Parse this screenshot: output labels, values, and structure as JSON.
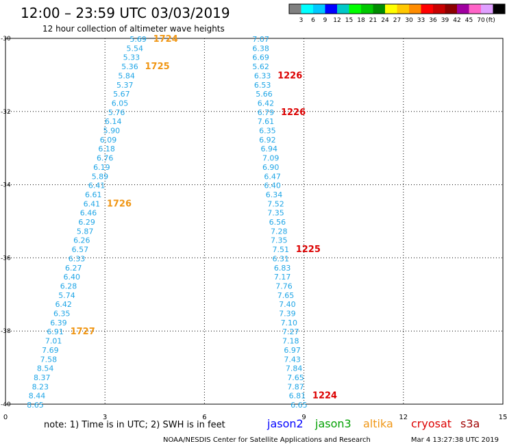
{
  "header": {
    "title": "12:00 – 23:59 UTC 03/03/2019",
    "subtitle": "12 hour collection of altimeter wave heights",
    "unit": "(ft)"
  },
  "legend": {
    "labels": [
      "3",
      "6",
      "9",
      "12",
      "15",
      "18",
      "21",
      "24",
      "27",
      "30",
      "33",
      "36",
      "39",
      "42",
      "45",
      "70"
    ],
    "colors": [
      "#808080",
      "#00ffff",
      "#00c8ff",
      "#0000ff",
      "#00c8c8",
      "#00ff00",
      "#00c800",
      "#008c00",
      "#ffff00",
      "#ffc800",
      "#ff8c00",
      "#ff0000",
      "#c80000",
      "#8c0000",
      "#a000a0",
      "#ff64c8",
      "#e0a0ff",
      "#000000"
    ]
  },
  "axes": {
    "x": {
      "range": [
        0,
        15
      ],
      "ticks": [
        "0",
        "3",
        "6",
        "9",
        "12",
        "15"
      ]
    },
    "y": {
      "range": [
        -40,
        -30
      ],
      "ticks": [
        "-30",
        "-32",
        "-34",
        "-36",
        "-38",
        "-40"
      ]
    },
    "grid": true
  },
  "colors": {
    "swh": "#1ea5e6",
    "altika": "#f09614",
    "cryosat": "#dc0000",
    "jason2": "#0000ff",
    "jason3": "#00a000",
    "s3a": "#a00000"
  },
  "chart_data": {
    "type": "scatter",
    "xlim": [
      0,
      15
    ],
    "ylim": [
      -40,
      -30
    ],
    "tracks": [
      {
        "points": [
          {
            "x": 4.0,
            "y": -30.0,
            "label": "5.69"
          },
          {
            "x": 3.9,
            "y": -30.25,
            "label": "5.54"
          },
          {
            "x": 3.8,
            "y": -30.5,
            "label": "5.33"
          },
          {
            "x": 3.75,
            "y": -30.75,
            "label": "5.36"
          },
          {
            "x": 3.65,
            "y": -31.0,
            "label": "5.84"
          },
          {
            "x": 3.6,
            "y": -31.25,
            "label": "5.37"
          },
          {
            "x": 3.5,
            "y": -31.5,
            "label": "5.67"
          },
          {
            "x": 3.45,
            "y": -31.75,
            "label": "6.05"
          },
          {
            "x": 3.35,
            "y": -32.0,
            "label": "5.76"
          },
          {
            "x": 3.25,
            "y": -32.25,
            "label": "6.14"
          },
          {
            "x": 3.2,
            "y": -32.5,
            "label": "5.90"
          },
          {
            "x": 3.1,
            "y": -32.75,
            "label": "6.09"
          },
          {
            "x": 3.05,
            "y": -33.0,
            "label": "6.18"
          },
          {
            "x": 3.0,
            "y": -33.25,
            "label": "6.76"
          },
          {
            "x": 2.9,
            "y": -33.5,
            "label": "6.19"
          },
          {
            "x": 2.85,
            "y": -33.75,
            "label": "5.89"
          },
          {
            "x": 2.75,
            "y": -34.0,
            "label": "6.41"
          },
          {
            "x": 2.65,
            "y": -34.25,
            "label": "6.61"
          },
          {
            "x": 2.6,
            "y": -34.5,
            "label": "6.41"
          },
          {
            "x": 2.5,
            "y": -34.75,
            "label": "6.46"
          },
          {
            "x": 2.45,
            "y": -35.0,
            "label": "6.29"
          },
          {
            "x": 2.4,
            "y": -35.25,
            "label": "5.87"
          },
          {
            "x": 2.3,
            "y": -35.5,
            "label": "6.26"
          },
          {
            "x": 2.25,
            "y": -35.75,
            "label": "6.57"
          },
          {
            "x": 2.15,
            "y": -36.0,
            "label": "6.33"
          },
          {
            "x": 2.05,
            "y": -36.25,
            "label": "6.27"
          },
          {
            "x": 2.0,
            "y": -36.5,
            "label": "6.40"
          },
          {
            "x": 1.9,
            "y": -36.75,
            "label": "6.28"
          },
          {
            "x": 1.85,
            "y": -37.0,
            "label": "5.74"
          },
          {
            "x": 1.75,
            "y": -37.25,
            "label": "6.42"
          },
          {
            "x": 1.7,
            "y": -37.5,
            "label": "6.35"
          },
          {
            "x": 1.6,
            "y": -37.75,
            "label": "6.39"
          },
          {
            "x": 1.5,
            "y": -38.0,
            "label": "6.91"
          },
          {
            "x": 1.45,
            "y": -38.25,
            "label": "7.01"
          },
          {
            "x": 1.35,
            "y": -38.5,
            "label": "7.69"
          },
          {
            "x": 1.3,
            "y": -38.75,
            "label": "7.58"
          },
          {
            "x": 1.2,
            "y": -39.0,
            "label": "8.54"
          },
          {
            "x": 1.1,
            "y": -39.25,
            "label": "8.37"
          },
          {
            "x": 1.05,
            "y": -39.5,
            "label": "8.23"
          },
          {
            "x": 0.95,
            "y": -39.75,
            "label": "8.44"
          },
          {
            "x": 0.9,
            "y": -40.0,
            "label": "8.65"
          }
        ],
        "times": [
          {
            "x": 4.0,
            "y": -30.0,
            "label": "1724"
          },
          {
            "x": 3.75,
            "y": -30.75,
            "label": "1725"
          },
          {
            "x": 2.6,
            "y": -34.5,
            "label": "1726"
          },
          {
            "x": 1.5,
            "y": -38.0,
            "label": "1727"
          }
        ]
      },
      {
        "points": [
          {
            "x": 7.7,
            "y": -30.0,
            "label": "7.07"
          },
          {
            "x": 7.7,
            "y": -30.25,
            "label": "6.38"
          },
          {
            "x": 7.7,
            "y": -30.5,
            "label": "6.69"
          },
          {
            "x": 7.7,
            "y": -30.75,
            "label": "5.62"
          },
          {
            "x": 7.75,
            "y": -31.0,
            "label": "6.33"
          },
          {
            "x": 7.75,
            "y": -31.25,
            "label": "6.53"
          },
          {
            "x": 7.8,
            "y": -31.5,
            "label": "5.66"
          },
          {
            "x": 7.85,
            "y": -31.75,
            "label": "6.42"
          },
          {
            "x": 7.85,
            "y": -32.0,
            "label": "6.79"
          },
          {
            "x": 7.85,
            "y": -32.25,
            "label": "7.61"
          },
          {
            "x": 7.9,
            "y": -32.5,
            "label": "6.35"
          },
          {
            "x": 7.9,
            "y": -32.75,
            "label": "6.92"
          },
          {
            "x": 7.95,
            "y": -33.0,
            "label": "6.94"
          },
          {
            "x": 8.0,
            "y": -33.25,
            "label": "7.09"
          },
          {
            "x": 8.0,
            "y": -33.5,
            "label": "6.90"
          },
          {
            "x": 8.05,
            "y": -33.75,
            "label": "6.47"
          },
          {
            "x": 8.05,
            "y": -34.0,
            "label": "6.40"
          },
          {
            "x": 8.1,
            "y": -34.25,
            "label": "6.34"
          },
          {
            "x": 8.15,
            "y": -34.5,
            "label": "7.52"
          },
          {
            "x": 8.15,
            "y": -34.75,
            "label": "7.35"
          },
          {
            "x": 8.2,
            "y": -35.0,
            "label": "6.56"
          },
          {
            "x": 8.25,
            "y": -35.25,
            "label": "7.28"
          },
          {
            "x": 8.25,
            "y": -35.5,
            "label": "7.35"
          },
          {
            "x": 8.3,
            "y": -35.75,
            "label": "7.51"
          },
          {
            "x": 8.3,
            "y": -36.0,
            "label": "6.31"
          },
          {
            "x": 8.35,
            "y": -36.25,
            "label": "6.83"
          },
          {
            "x": 8.35,
            "y": -36.5,
            "label": "7.17"
          },
          {
            "x": 8.4,
            "y": -36.75,
            "label": "7.76"
          },
          {
            "x": 8.45,
            "y": -37.0,
            "label": "7.65"
          },
          {
            "x": 8.5,
            "y": -37.25,
            "label": "7.40"
          },
          {
            "x": 8.5,
            "y": -37.5,
            "label": "7.39"
          },
          {
            "x": 8.55,
            "y": -37.75,
            "label": "7.10"
          },
          {
            "x": 8.6,
            "y": -38.0,
            "label": "7.27"
          },
          {
            "x": 8.6,
            "y": -38.25,
            "label": "7.18"
          },
          {
            "x": 8.65,
            "y": -38.5,
            "label": "6.97"
          },
          {
            "x": 8.65,
            "y": -38.75,
            "label": "7.43"
          },
          {
            "x": 8.7,
            "y": -39.0,
            "label": "7.84"
          },
          {
            "x": 8.75,
            "y": -39.25,
            "label": "7.65"
          },
          {
            "x": 8.75,
            "y": -39.5,
            "label": "7.87"
          },
          {
            "x": 8.8,
            "y": -39.75,
            "label": "6.81"
          },
          {
            "x": 8.85,
            "y": -40.0,
            "label": "6.65"
          }
        ],
        "times": [
          {
            "x": 7.75,
            "y": -31.0,
            "label": "1226"
          },
          {
            "x": 7.85,
            "y": -32.0,
            "label": "1226"
          },
          {
            "x": 8.3,
            "y": -35.75,
            "label": "1225"
          },
          {
            "x": 8.8,
            "y": -39.75,
            "label": "1224"
          }
        ]
      }
    ]
  },
  "footer": {
    "note": "note: 1) Time is in UTC; 2) SWH is in feet",
    "missions": [
      "jason2",
      "jason3",
      "altika",
      "cryosat",
      "s3a"
    ],
    "credit": "NOAA/NESDIS Center for Satellite Applications and Research",
    "timestamp": "Mar  4 13:27:38 UTC 2019"
  }
}
